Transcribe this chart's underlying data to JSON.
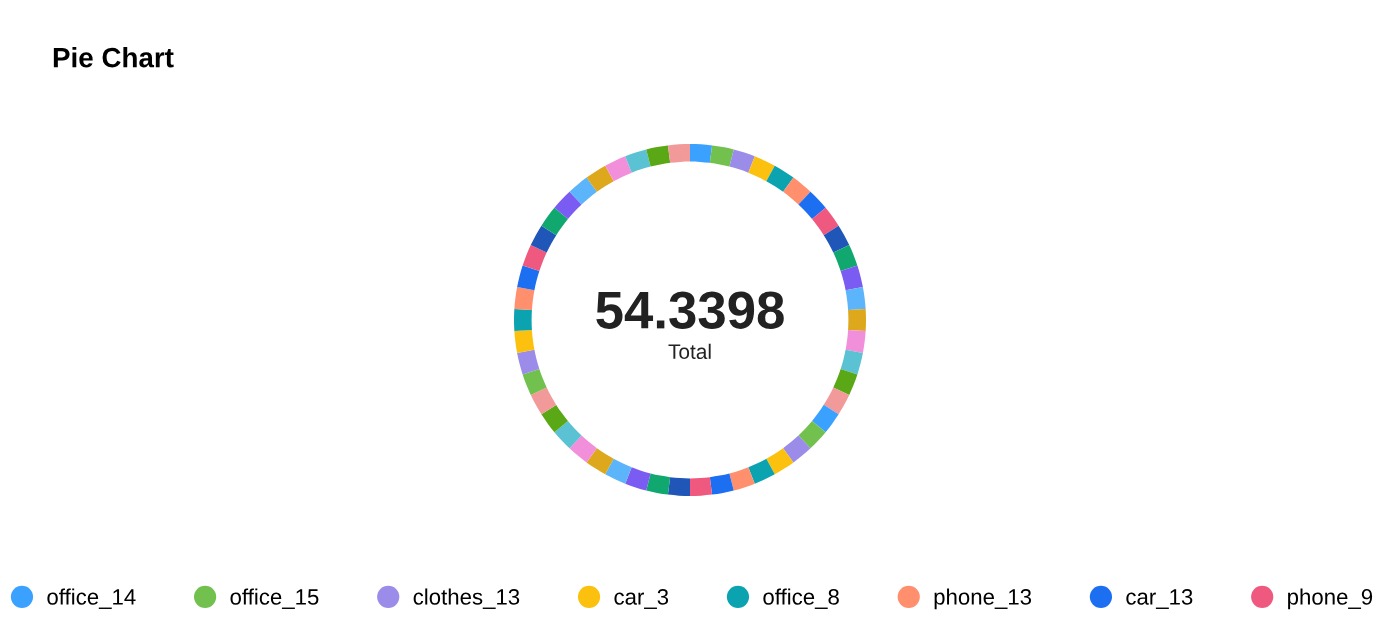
{
  "chart_data": {
    "type": "donut",
    "title": "Pie Chart",
    "annotations": [
      "54.3398",
      "Total"
    ],
    "categories": [
      "office_14",
      "office_15",
      "clothes_13",
      "car_3",
      "office_8",
      "phone_13",
      "car_13",
      "phone_9",
      null,
      null,
      null,
      null,
      null,
      null,
      null,
      null,
      null,
      null,
      null,
      null,
      null,
      null,
      null,
      null,
      null,
      null,
      null,
      null,
      null,
      null,
      null,
      null,
      null,
      null,
      null,
      null,
      null,
      null,
      null,
      null,
      null,
      null,
      null,
      null,
      null,
      null,
      null,
      null,
      null,
      null
    ],
    "values": [
      2,
      2,
      2,
      2,
      2,
      2,
      2,
      2,
      2,
      2,
      2,
      2,
      2,
      2,
      2,
      2,
      2,
      2,
      2,
      2,
      2,
      2,
      2,
      2,
      2,
      2,
      2,
      2,
      2,
      2,
      2,
      2,
      2,
      2,
      2,
      2,
      2,
      2,
      2,
      2,
      2,
      2,
      2,
      2,
      2,
      2,
      2,
      2,
      2,
      2
    ],
    "colors": [
      "#3ba1ff",
      "#72c14f",
      "#9a8ce8",
      "#fbc10e",
      "#0ba3b0",
      "#ff8f6d",
      "#1d6ff2",
      "#f0597f",
      "#1f56b8",
      "#11a86f",
      "#7b5cf2",
      "#5cb4fa",
      "#dea81c",
      "#f28fdb",
      "#5bc2d3",
      "#5aa815",
      "#f29a99",
      "#3ba1ff",
      "#72c14f",
      "#9a8ce8",
      "#fbc10e",
      "#0ba3b0",
      "#ff8f6d",
      "#1d6ff2",
      "#f0597f",
      "#1f56b8",
      "#11a86f",
      "#7b5cf2",
      "#5cb4fa",
      "#dea81c",
      "#f28fdb",
      "#5bc2d3",
      "#5aa815",
      "#f29a99",
      "#72c14f",
      "#9a8ce8",
      "#fbc10e",
      "#0ba3b0",
      "#ff8f6d",
      "#1d6ff2",
      "#f0597f",
      "#1f56b8",
      "#11a86f",
      "#7b5cf2",
      "#5cb4fa",
      "#dea81c",
      "#f28fdb",
      "#5bc2d3",
      "#5aa815",
      "#f29a99"
    ],
    "legend": "bottom"
  }
}
